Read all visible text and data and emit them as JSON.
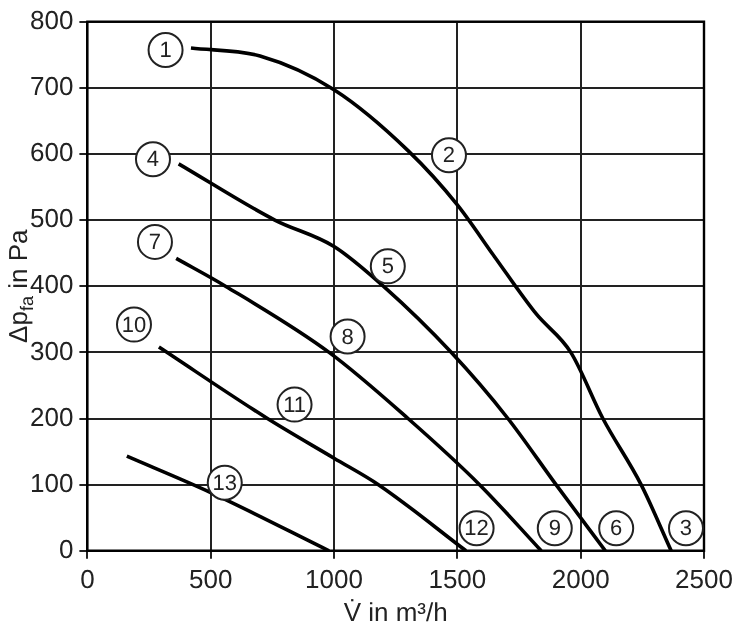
{
  "chart_data": {
    "type": "line",
    "xlabel": "V̇ in m³/h",
    "ylabel": "Δp$_{fa}$ in Pa",
    "series": [
      {
        "color": "#000000",
        "x": [
          420,
          700,
          1000,
          1300,
          1500,
          1650,
          1820,
          1960,
          2090,
          2245,
          2367
        ],
        "values": [
          760,
          748,
          697,
          605,
          523,
          445,
          358,
          300,
          200,
          100,
          0
        ]
      },
      {
        "color": "#000000",
        "x": [
          370,
          760,
          1000,
          1200,
          1475,
          1705,
          1900,
          2100
        ],
        "values": [
          585,
          500,
          460,
          400,
          300,
          200,
          100,
          0
        ]
      },
      {
        "color": "#000000",
        "x": [
          360,
          560,
          980,
          1300,
          1590,
          1840
        ],
        "values": [
          442,
          400,
          300,
          200,
          100,
          0
        ]
      },
      {
        "color": "#000000",
        "x": [
          290,
          730,
          1000,
          1180,
          1535
        ],
        "values": [
          308,
          200,
          140,
          100,
          0
        ]
      },
      {
        "color": "#000000",
        "x": [
          160,
          500,
          980
        ],
        "values": [
          143,
          88,
          0
        ]
      }
    ],
    "annotations": [
      {
        "text": "1",
        "x": 317,
        "y": 757
      },
      {
        "text": "2",
        "x": 1466,
        "y": 598
      },
      {
        "text": "3",
        "x": 2427,
        "y": 34
      },
      {
        "text": "4",
        "x": 266,
        "y": 592
      },
      {
        "text": "5",
        "x": 1218,
        "y": 430
      },
      {
        "text": "6",
        "x": 2144,
        "y": 34
      },
      {
        "text": "7",
        "x": 274,
        "y": 467
      },
      {
        "text": "8",
        "x": 1055,
        "y": 324
      },
      {
        "text": "9",
        "x": 1895,
        "y": 34
      },
      {
        "text": "10",
        "x": 189,
        "y": 342
      },
      {
        "text": "11",
        "x": 840,
        "y": 221
      },
      {
        "text": "12",
        "x": 1578,
        "y": 34
      },
      {
        "text": "13",
        "x": 557,
        "y": 103
      }
    ],
    "xlim": [
      0,
      2500
    ],
    "xticks": [
      0,
      500,
      1000,
      1500,
      2000,
      2500
    ],
    "ylim": [
      0,
      800
    ],
    "yticks": [
      0,
      100,
      200,
      300,
      400,
      500,
      600,
      700,
      800
    ],
    "grid": true,
    "legend": false,
    "marker": "none",
    "line_style": "solid"
  }
}
